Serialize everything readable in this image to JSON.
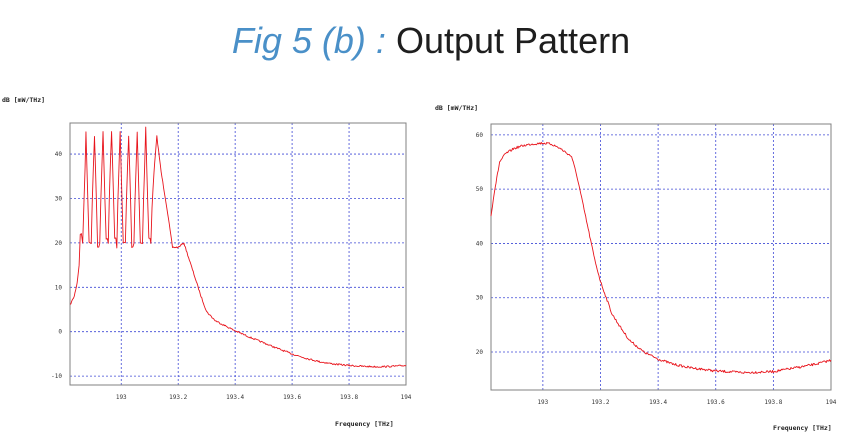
{
  "figure": {
    "title_italic": "Fig 5 (b) :",
    "title_rest": "Output Pattern"
  },
  "colors": {
    "trace": "#e8141c",
    "grid": "#3f49d6",
    "frame": "#808080"
  },
  "chart_data": [
    {
      "type": "line",
      "ylabel": "dB [mW/THz]",
      "xlabel": "Frequency [THz]",
      "xlim": [
        192.82,
        194.0
      ],
      "ylim": [
        -12,
        47
      ],
      "x_ticks": [
        193,
        193.2,
        193.4,
        193.6,
        193.8,
        194
      ],
      "x_tick_labels": [
        "193",
        "193.2",
        "193.4",
        "193.6",
        "193.8",
        "194"
      ],
      "y_ticks": [
        -10,
        0,
        10,
        20,
        30,
        40
      ],
      "y_tick_labels": [
        "-10",
        "0",
        "10",
        "20",
        "30",
        "40"
      ],
      "grid": true,
      "series": [
        {
          "x": [
            192.82,
            192.835,
            192.845,
            192.852,
            192.856,
            192.86,
            192.8645,
            192.869,
            192.873,
            192.876,
            192.8795,
            192.883,
            192.887,
            192.891,
            192.8945,
            192.898,
            192.902,
            192.906,
            192.9095,
            192.913,
            192.917,
            192.921,
            192.9245,
            192.928,
            192.932,
            192.936,
            192.9395,
            192.943,
            192.947,
            192.951,
            192.9545,
            192.958,
            192.962,
            192.966,
            192.9695,
            192.973,
            192.977,
            192.981,
            192.9845,
            192.988,
            192.992,
            192.996,
            192.9995,
            193.003,
            193.007,
            193.011,
            193.0145,
            193.018,
            193.022,
            193.026,
            193.0295,
            193.033,
            193.037,
            193.041,
            193.0445,
            193.048,
            193.052,
            193.056,
            193.0595,
            193.063,
            193.067,
            193.071,
            193.0745,
            193.078,
            193.082,
            193.086,
            193.0895,
            193.093,
            193.097,
            193.101,
            193.104,
            193.108,
            193.115,
            193.125,
            193.14,
            193.16,
            193.18,
            193.2,
            193.22,
            193.25,
            193.28,
            193.3,
            193.33,
            193.36,
            193.4,
            193.45,
            193.5,
            193.55,
            193.6,
            193.65,
            193.7,
            193.75,
            193.8,
            193.85,
            193.9,
            193.95,
            194.0
          ],
          "y": [
            6,
            8,
            11,
            15,
            22,
            22,
            20,
            29,
            37,
            45,
            37,
            29,
            20,
            20,
            20,
            29,
            37,
            44,
            37,
            29,
            19,
            19,
            20,
            29,
            37,
            45,
            37,
            29,
            21,
            21,
            20,
            30,
            38,
            45,
            38,
            30,
            21,
            21,
            19,
            29,
            37,
            45,
            37,
            29,
            20,
            20,
            20,
            29,
            37,
            44,
            37,
            29,
            19,
            19,
            20,
            29,
            37,
            45,
            37,
            29,
            20,
            20,
            20,
            29,
            37,
            46,
            37,
            29,
            21,
            21,
            20,
            28,
            36,
            44,
            36,
            28,
            19,
            19,
            20,
            14,
            8,
            4.5,
            2.5,
            1.5,
            0.2,
            -1.2,
            -2.5,
            -3.8,
            -5,
            -6,
            -6.8,
            -7.3,
            -7.6,
            -7.8,
            -7.9,
            -7.8,
            -7.6
          ]
        }
      ]
    },
    {
      "type": "line",
      "ylabel": "dB [mW/THz]",
      "xlabel": "Frequency [THz]",
      "xlim": [
        192.82,
        194.0
      ],
      "ylim": [
        13,
        62
      ],
      "x_ticks": [
        193,
        193.2,
        193.4,
        193.6,
        193.8,
        194
      ],
      "x_tick_labels": [
        "193",
        "193.2",
        "193.4",
        "193.6",
        "193.8",
        "194"
      ],
      "y_ticks": [
        20,
        30,
        40,
        50,
        60
      ],
      "y_tick_labels": [
        "20",
        "30",
        "40",
        "50",
        "60"
      ],
      "grid": true,
      "series": [
        {
          "x": [
            192.82,
            192.83,
            192.84,
            192.85,
            192.87,
            192.9,
            192.93,
            192.96,
            193.0,
            193.03,
            193.06,
            193.1,
            193.12,
            193.14,
            193.16,
            193.18,
            193.2,
            193.22,
            193.24,
            193.27,
            193.3,
            193.35,
            193.4,
            193.45,
            193.5,
            193.6,
            193.7,
            193.8,
            193.9,
            193.95,
            194.0
          ],
          "y": [
            45,
            49,
            52,
            55,
            56.5,
            57.5,
            58,
            58.3,
            58.5,
            58.3,
            57.5,
            56,
            52,
            47,
            42,
            37,
            33,
            30,
            27,
            24.5,
            22.2,
            20,
            18.7,
            17.8,
            17.2,
            16.5,
            16.2,
            16.4,
            17.3,
            17.8,
            18.5
          ]
        }
      ]
    }
  ]
}
